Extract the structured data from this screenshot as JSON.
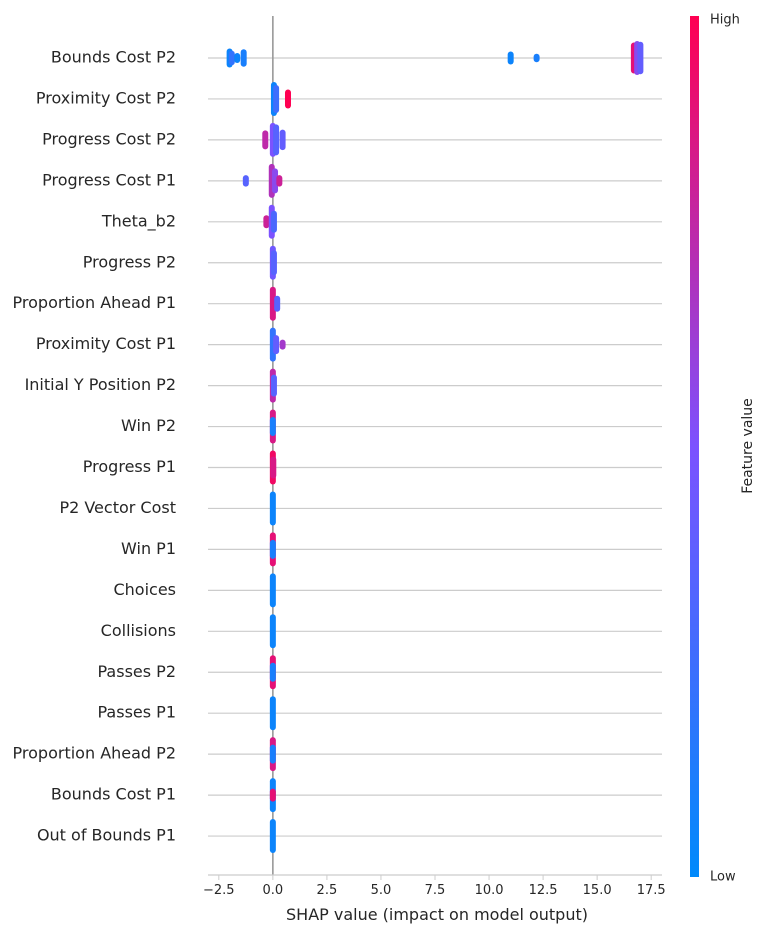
{
  "chart_data": {
    "type": "scatter",
    "subtype": "shap-beeswarm",
    "xlabel": "SHAP value (impact on model output)",
    "xlim": [
      -3.0,
      18.0
    ],
    "xticks": [
      -2.5,
      0.0,
      2.5,
      5.0,
      7.5,
      10.0,
      12.5,
      15.0,
      17.5
    ],
    "xtick_labels": [
      "−2.5",
      "0.0",
      "2.5",
      "5.0",
      "7.5",
      "10.0",
      "12.5",
      "15.0",
      "17.5"
    ],
    "grid": true,
    "zero_line": true,
    "colorbar": {
      "title": "Feature value",
      "high_label": "High",
      "low_label": "Low",
      "low_color": "#008afb",
      "mid_color": "#7c52ff",
      "high_color": "#ff0052"
    },
    "features": [
      {
        "name": "Bounds Cost P2",
        "points": [
          {
            "x": -2.0,
            "spread": 0.5,
            "f": 0.05
          },
          {
            "x": -1.9,
            "spread": 0.35,
            "f": 0.2
          },
          {
            "x": -1.35,
            "spread": 0.45,
            "f": 0.1
          },
          {
            "x": -1.65,
            "spread": 0.2,
            "f": 0.05
          },
          {
            "x": 11.0,
            "spread": 0.3,
            "f": 0.05
          },
          {
            "x": 12.2,
            "spread": 0.15,
            "f": 0.1
          },
          {
            "x": 16.7,
            "spread": 0.9,
            "f": 0.9
          },
          {
            "x": 16.85,
            "spread": 1.0,
            "f": 0.55
          },
          {
            "x": 17.0,
            "spread": 0.95,
            "f": 0.4
          }
        ]
      },
      {
        "name": "Proximity Cost P2",
        "points": [
          {
            "x": 0.05,
            "spread": 1.0,
            "f": 0.05
          },
          {
            "x": 0.15,
            "spread": 0.8,
            "f": 0.25
          },
          {
            "x": 0.7,
            "spread": 0.5,
            "f": 1.0
          }
        ]
      },
      {
        "name": "Progress Cost P2",
        "points": [
          {
            "x": -0.35,
            "spread": 0.5,
            "f": 0.75
          },
          {
            "x": 0.0,
            "spread": 1.0,
            "f": 0.5
          },
          {
            "x": 0.15,
            "spread": 0.9,
            "f": 0.35
          },
          {
            "x": 0.45,
            "spread": 0.55,
            "f": 0.4
          }
        ]
      },
      {
        "name": "Progress Cost P1",
        "points": [
          {
            "x": -1.25,
            "spread": 0.25,
            "f": 0.35
          },
          {
            "x": -0.05,
            "spread": 1.0,
            "f": 0.7
          },
          {
            "x": 0.1,
            "spread": 0.7,
            "f": 0.55
          },
          {
            "x": 0.3,
            "spread": 0.25,
            "f": 0.8
          }
        ]
      },
      {
        "name": "Theta_b2",
        "points": [
          {
            "x": -0.3,
            "spread": 0.3,
            "f": 0.8
          },
          {
            "x": -0.05,
            "spread": 1.0,
            "f": 0.5
          },
          {
            "x": 0.05,
            "spread": 0.6,
            "f": 0.3
          }
        ]
      },
      {
        "name": "Progress P2",
        "points": [
          {
            "x": 0.0,
            "spread": 1.0,
            "f": 0.45
          },
          {
            "x": 0.05,
            "spread": 0.7,
            "f": 0.35
          }
        ]
      },
      {
        "name": "Proportion Ahead P1",
        "points": [
          {
            "x": 0.0,
            "spread": 1.0,
            "f": 0.85
          },
          {
            "x": 0.2,
            "spread": 0.4,
            "f": 0.35
          }
        ]
      },
      {
        "name": "Proximity Cost P1",
        "points": [
          {
            "x": 0.0,
            "spread": 1.0,
            "f": 0.2
          },
          {
            "x": 0.15,
            "spread": 0.5,
            "f": 0.4
          },
          {
            "x": 0.45,
            "spread": 0.2,
            "f": 0.65
          }
        ]
      },
      {
        "name": "Initial Y Position P2",
        "points": [
          {
            "x": 0.0,
            "spread": 1.0,
            "f": 0.75
          },
          {
            "x": 0.05,
            "spread": 0.6,
            "f": 0.35
          }
        ]
      },
      {
        "name": "Win P2",
        "points": [
          {
            "x": 0.0,
            "spread": 1.0,
            "f": 0.85
          },
          {
            "x": 0.0,
            "spread": 0.5,
            "f": 0.1
          }
        ]
      },
      {
        "name": "Progress P1",
        "points": [
          {
            "x": 0.0,
            "spread": 1.0,
            "f": 0.95
          },
          {
            "x": 0.02,
            "spread": 0.6,
            "f": 0.85
          }
        ]
      },
      {
        "name": "P2 Vector Cost",
        "points": [
          {
            "x": 0.0,
            "spread": 1.0,
            "f": 0.05
          }
        ]
      },
      {
        "name": "Win P1",
        "points": [
          {
            "x": 0.0,
            "spread": 1.0,
            "f": 0.9
          },
          {
            "x": 0.0,
            "spread": 0.5,
            "f": 0.1
          }
        ]
      },
      {
        "name": "Choices",
        "points": [
          {
            "x": 0.0,
            "spread": 1.0,
            "f": 0.05
          }
        ]
      },
      {
        "name": "Collisions",
        "points": [
          {
            "x": 0.0,
            "spread": 1.0,
            "f": 0.05
          }
        ]
      },
      {
        "name": "Passes P2",
        "points": [
          {
            "x": 0.0,
            "spread": 1.0,
            "f": 0.9
          },
          {
            "x": 0.0,
            "spread": 0.5,
            "f": 0.1
          }
        ]
      },
      {
        "name": "Passes P1",
        "points": [
          {
            "x": 0.0,
            "spread": 1.0,
            "f": 0.05
          }
        ]
      },
      {
        "name": "Proportion Ahead P2",
        "points": [
          {
            "x": 0.0,
            "spread": 1.0,
            "f": 0.85
          },
          {
            "x": 0.0,
            "spread": 0.5,
            "f": 0.1
          }
        ]
      },
      {
        "name": "Bounds Cost P1",
        "points": [
          {
            "x": 0.0,
            "spread": 1.0,
            "f": 0.05
          },
          {
            "x": 0.0,
            "spread": 0.3,
            "f": 0.9
          }
        ]
      },
      {
        "name": "Out of Bounds P1",
        "points": [
          {
            "x": 0.0,
            "spread": 1.0,
            "f": 0.05
          }
        ]
      }
    ]
  }
}
